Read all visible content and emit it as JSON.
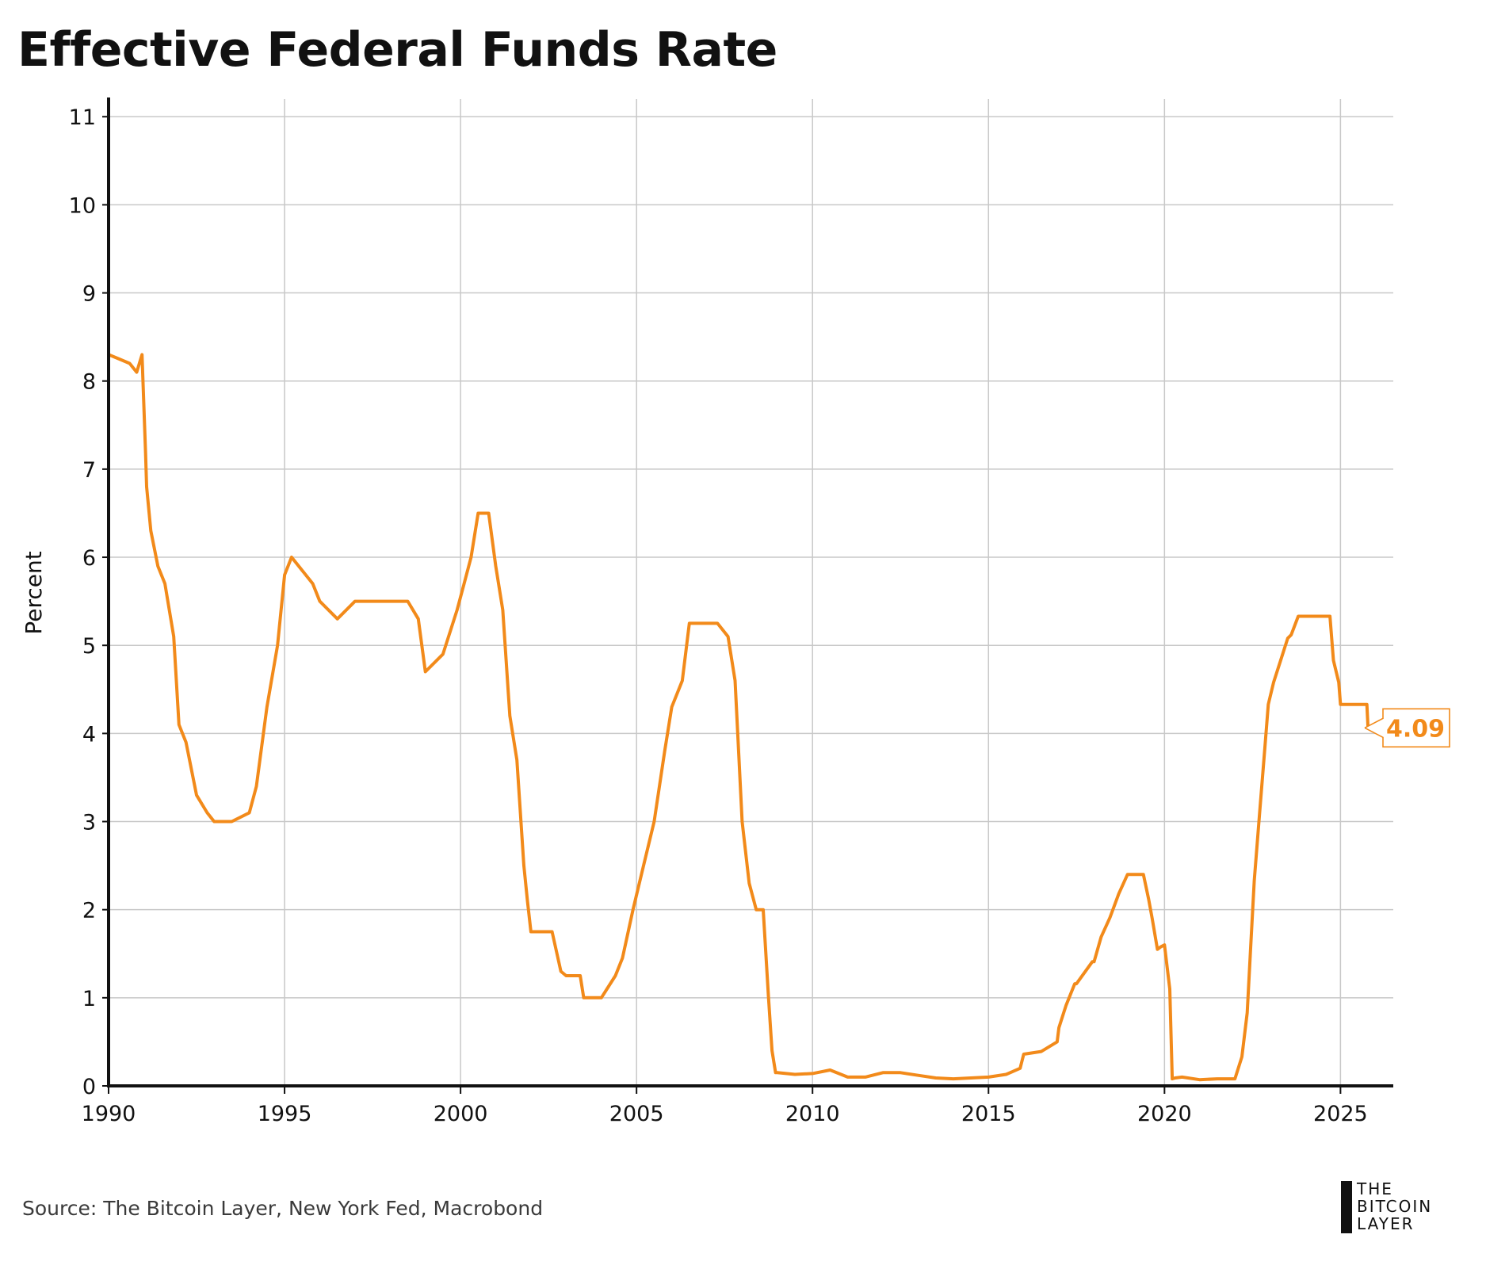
{
  "colors": {
    "series": "#F28A1A",
    "grid": "#C8C8C8",
    "axis": "#111111"
  },
  "header": {
    "title": "Effective Federal Funds Rate"
  },
  "footer": {
    "source": "Source: The Bitcoin Layer, New York Fed, Macrobond"
  },
  "logo": {
    "line1": "THE",
    "line2": "BITCOIN",
    "line3": "LAYER"
  },
  "chart_data": {
    "type": "line",
    "title": "Effective Federal Funds Rate",
    "xlabel": "",
    "ylabel": "Percent",
    "xlim": [
      1990,
      2026.5
    ],
    "ylim": [
      0,
      11.2
    ],
    "xticks": [
      1990,
      1995,
      2000,
      2005,
      2010,
      2015,
      2020,
      2025
    ],
    "yticks": [
      0,
      1,
      2,
      3,
      4,
      5,
      6,
      7,
      8,
      9,
      10,
      11
    ],
    "grid": true,
    "last_value_label": "4.09",
    "series": [
      {
        "name": "Effective Federal Funds Rate",
        "x": [
          1990.0,
          1990.3,
          1990.6,
          1990.8,
          1990.95,
          1991.05,
          1991.08,
          1991.2,
          1991.4,
          1991.6,
          1991.85,
          1992.0,
          1992.2,
          1992.5,
          1992.8,
          1993.0,
          1993.5,
          1994.0,
          1994.2,
          1994.5,
          1994.8,
          1995.0,
          1995.2,
          1995.5,
          1995.8,
          1996.0,
          1996.5,
          1997.0,
          1997.5,
          1998.0,
          1998.5,
          1998.8,
          1999.0,
          1999.5,
          1999.9,
          2000.1,
          2000.3,
          2000.5,
          2000.8,
          2001.0,
          2001.2,
          2001.4,
          2001.6,
          2001.8,
          2001.9,
          2002.0,
          2002.3,
          2002.6,
          2002.85,
          2003.0,
          2003.4,
          2003.5,
          2004.0,
          2004.4,
          2004.6,
          2004.9,
          2005.2,
          2005.5,
          2005.8,
          2006.0,
          2006.3,
          2006.5,
          2006.8,
          2007.0,
          2007.3,
          2007.6,
          2007.8,
          2008.0,
          2008.2,
          2008.4,
          2008.6,
          2008.75,
          2008.85,
          2008.95,
          2009.0,
          2009.5,
          2010.0,
          2010.5,
          2011.0,
          2011.5,
          2012.0,
          2012.5,
          2013.0,
          2013.5,
          2014.0,
          2014.5,
          2015.0,
          2015.5,
          2015.9,
          2016.0,
          2016.5,
          2016.95,
          2017.0,
          2017.2,
          2017.45,
          2017.5,
          2017.95,
          2018.0,
          2018.2,
          2018.45,
          2018.7,
          2018.95,
          2019.0,
          2019.4,
          2019.55,
          2019.65,
          2019.8,
          2019.9,
          2020.0,
          2020.15,
          2020.22,
          2020.3,
          2020.5,
          2021.0,
          2021.5,
          2022.0,
          2022.2,
          2022.35,
          2022.45,
          2022.55,
          2022.7,
          2022.85,
          2022.95,
          2023.1,
          2023.3,
          2023.5,
          2023.6,
          2023.8,
          2024.0,
          2024.5,
          2024.7,
          2024.8,
          2024.95,
          2025.0,
          2025.3,
          2025.6,
          2025.75,
          2025.78
        ],
        "values": [
          8.3,
          8.25,
          8.2,
          8.1,
          8.3,
          7.2,
          6.8,
          6.3,
          5.9,
          5.7,
          5.1,
          4.1,
          3.9,
          3.3,
          3.1,
          3.0,
          3.0,
          3.1,
          3.4,
          4.3,
          5.0,
          5.8,
          6.0,
          5.85,
          5.7,
          5.5,
          5.3,
          5.5,
          5.5,
          5.5,
          5.5,
          5.3,
          4.7,
          4.9,
          5.4,
          5.7,
          6.0,
          6.5,
          6.5,
          5.9,
          5.4,
          4.2,
          3.7,
          2.5,
          2.1,
          1.75,
          1.75,
          1.75,
          1.3,
          1.25,
          1.25,
          1.0,
          1.0,
          1.25,
          1.45,
          2.0,
          2.5,
          3.0,
          3.8,
          4.3,
          4.6,
          5.25,
          5.25,
          5.25,
          5.25,
          5.1,
          4.6,
          3.0,
          2.3,
          2.0,
          2.0,
          1.0,
          0.4,
          0.15,
          0.15,
          0.13,
          0.14,
          0.18,
          0.1,
          0.1,
          0.15,
          0.15,
          0.12,
          0.09,
          0.08,
          0.09,
          0.1,
          0.13,
          0.2,
          0.36,
          0.39,
          0.5,
          0.66,
          0.91,
          1.16,
          1.16,
          1.41,
          1.41,
          1.69,
          1.91,
          2.18,
          2.4,
          2.4,
          2.4,
          2.12,
          1.9,
          1.55,
          1.58,
          1.6,
          1.1,
          0.08,
          0.09,
          0.1,
          0.07,
          0.08,
          0.08,
          0.33,
          0.83,
          1.58,
          2.33,
          3.08,
          3.83,
          4.33,
          4.58,
          4.83,
          5.08,
          5.12,
          5.33,
          5.33,
          5.33,
          5.33,
          4.83,
          4.58,
          4.33,
          4.33,
          4.33,
          4.33,
          4.09
        ]
      }
    ]
  }
}
